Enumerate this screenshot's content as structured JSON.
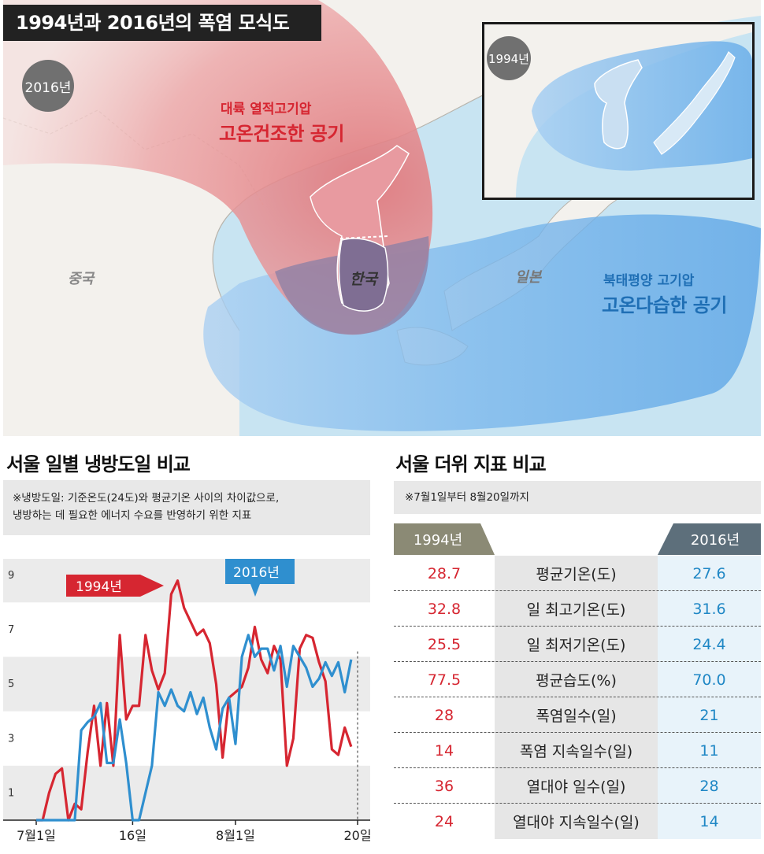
{
  "map": {
    "title": "1994년과 2016년의 폭염 모식도",
    "year_2016": "2016년",
    "year_1994": "1994년",
    "continental": {
      "line1": "대륙 열적고기압",
      "line2": "고온건조한 공기"
    },
    "pacific": {
      "line1": "북태평양 고기압",
      "line2": "고온다습한 공기"
    },
    "country_china": "중국",
    "country_korea": "한국",
    "country_japan": "일본",
    "colors": {
      "red_air": "#e07a7e",
      "blue_air": "#5aa7e6",
      "land": "#f2f0ec",
      "sea": "#c8e4f2"
    }
  },
  "chart_section": {
    "title": "서울 일별 냉방도일 비교",
    "note_line1": "※냉방도일: 기준온도(24도)와 평균기온 사이의 차이값으로,",
    "note_line2": "냉방하는 데 필요한 에너지 수요를 반영하기 위한 지표"
  },
  "table_section": {
    "title": "서울 더위 지표 비교",
    "note": "※7월1일부터 8월20일까지",
    "col_1994": "1994년",
    "col_2016": "2016년",
    "rows": [
      {
        "label": "평균기온(도)",
        "v1994": "28.7",
        "v2016": "27.6"
      },
      {
        "label": "일 최고기온(도)",
        "v1994": "32.8",
        "v2016": "31.6"
      },
      {
        "label": "일 최저기온(도)",
        "v1994": "25.5",
        "v2016": "24.4"
      },
      {
        "label": "평균습도(%)",
        "v1994": "77.5",
        "v2016": "70.0"
      },
      {
        "label": "폭염일수(일)",
        "v1994": "28",
        "v2016": "21"
      },
      {
        "label": "폭염 지속일수(일)",
        "v1994": "14",
        "v2016": "11"
      },
      {
        "label": "열대야 일수(일)",
        "v1994": "36",
        "v2016": "28"
      },
      {
        "label": "열대야 지속일수(일)",
        "v1994": "24",
        "v2016": "14"
      }
    ],
    "colors": {
      "red": "#d62631",
      "blue": "#1f87c5",
      "tab_1994": "#8b8a75",
      "tab_2016": "#5d6f7b"
    }
  },
  "chart_data": {
    "type": "line",
    "title": "서울 일별 냉방도일 비교",
    "xlabel": "",
    "ylabel": "",
    "x_range": [
      1,
      51
    ],
    "ylim": [
      0,
      9.6
    ],
    "yticks": [
      1,
      3,
      5,
      7,
      9
    ],
    "xticks": [
      {
        "day": 1,
        "label": "7월1일"
      },
      {
        "day": 16,
        "label": "16일"
      },
      {
        "day": 32,
        "label": "8월1일"
      },
      {
        "day": 51,
        "label": "20일"
      }
    ],
    "grid": true,
    "series": [
      {
        "name": "1994년",
        "color": "#d62631",
        "values": [
          0,
          0,
          1.0,
          1.7,
          1.9,
          0,
          0.6,
          0.4,
          2.5,
          4.2,
          2.0,
          4.3,
          2.0,
          6.8,
          3.7,
          4.2,
          4.2,
          6.8,
          5.5,
          4.8,
          5.4,
          8.3,
          8.8,
          7.8,
          7.3,
          6.8,
          7.0,
          6.5,
          5.0,
          2.3,
          4.5,
          4.7,
          4.9,
          5.6,
          7.1,
          5.9,
          5.4,
          6.4,
          5.9,
          2.0,
          3.0,
          6.3,
          6.8,
          6.7,
          5.8,
          5.1,
          2.6,
          2.4,
          3.4,
          2.7
        ]
      },
      {
        "name": "2016년",
        "color": "#2f8fcf",
        "values": [
          0,
          0,
          0,
          0,
          0,
          0,
          0,
          3.3,
          3.6,
          3.8,
          4.3,
          2.1,
          2.1,
          3.7,
          2.1,
          0,
          0,
          1.0,
          2.0,
          4.7,
          4.2,
          4.8,
          4.2,
          4.0,
          4.7,
          3.9,
          4.5,
          3.4,
          2.6,
          4.1,
          4.5,
          2.8,
          6.0,
          6.8,
          6.0,
          6.3,
          6.3,
          5.5,
          6.4,
          4.9,
          6.4,
          6.0,
          5.6,
          4.9,
          5.2,
          5.8,
          5.3,
          5.8,
          4.7,
          5.9
        ]
      }
    ],
    "labels": {
      "a": "1994년",
      "b": "2016년"
    }
  }
}
